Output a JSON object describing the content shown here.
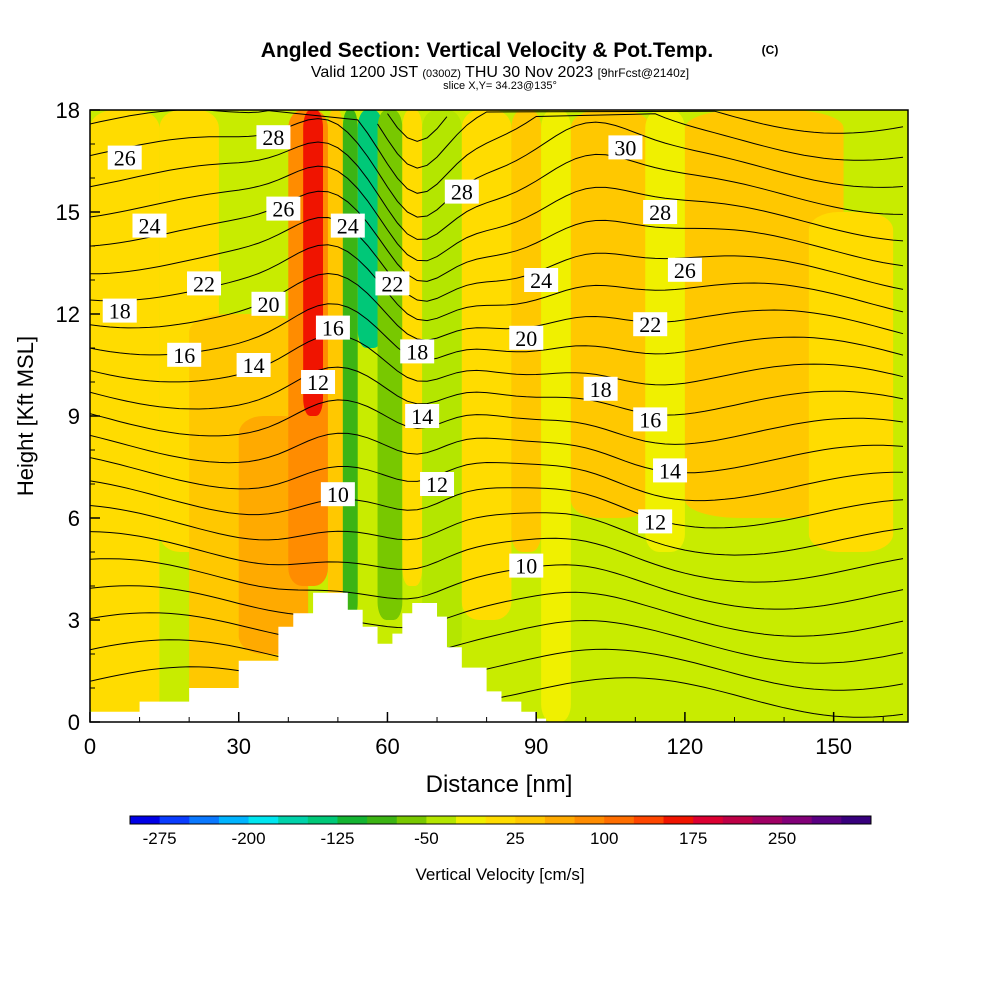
{
  "header": {
    "title": "Angled Section: Vertical Velocity & Pot.Temp.",
    "title_unit": "(C)",
    "valid_a": "Valid 1200 JST",
    "valid_z": "(0300Z)",
    "valid_b": "THU 30 Nov 2023",
    "fcst": "[9hrFcst@2140z]",
    "slice": "slice X,Y= 34.23@135°"
  },
  "chart_data": {
    "type": "contour",
    "xlabel": "Distance [nm]",
    "ylabel": "Height [Kft MSL]",
    "xlim": [
      0,
      165
    ],
    "ylim": [
      0,
      18
    ],
    "x_ticks": [
      0,
      30,
      60,
      90,
      120,
      150
    ],
    "y_ticks": [
      0,
      3,
      6,
      9,
      12,
      15,
      18
    ],
    "colorbar": {
      "label": "Vertical Velocity [cm/s]",
      "min": -300,
      "max": 325,
      "step": 25,
      "tick_labels": [
        "-275",
        "-200",
        "-125",
        "-50",
        "25",
        "100",
        "175",
        "250"
      ],
      "colors": [
        "#0000e6",
        "#0a3cff",
        "#0a78ff",
        "#00b4ff",
        "#00e6f0",
        "#00d2aa",
        "#00c878",
        "#14b432",
        "#3cb414",
        "#78c800",
        "#b4e600",
        "#f0f000",
        "#ffdc00",
        "#ffc800",
        "#ffaa00",
        "#ff8c00",
        "#ff6e00",
        "#ff4600",
        "#f01400",
        "#dc0032",
        "#be0046",
        "#a00064",
        "#820078",
        "#5a0082",
        "#37007d"
      ]
    },
    "velocity_bands": [
      {
        "x": 0,
        "w": 14,
        "ymin": 0,
        "ymax": 18,
        "value": 0
      },
      {
        "x": 14,
        "w": 12,
        "ymin": 5,
        "ymax": 18,
        "value": 10
      },
      {
        "x": 20,
        "w": 22,
        "ymin": 0,
        "ymax": 12,
        "value": 30
      },
      {
        "x": 30,
        "w": 14,
        "ymin": 2,
        "ymax": 9,
        "value": 60
      },
      {
        "x": 40,
        "w": 8,
        "ymin": 4,
        "ymax": 18,
        "value": 80
      },
      {
        "x": 43,
        "w": 4,
        "ymin": 9,
        "ymax": 18,
        "value": 150
      },
      {
        "x": 48,
        "w": 3,
        "ymin": 3,
        "ymax": 18,
        "value": 40
      },
      {
        "x": 51,
        "w": 3,
        "ymin": 3,
        "ymax": 18,
        "value": -80
      },
      {
        "x": 54,
        "w": 5,
        "ymin": 11,
        "ymax": 18,
        "value": -150
      },
      {
        "x": 58,
        "w": 5,
        "ymin": 3,
        "ymax": 18,
        "value": -60
      },
      {
        "x": 63,
        "w": 4,
        "ymin": 4,
        "ymax": 18,
        "value": 20
      },
      {
        "x": 67,
        "w": 8,
        "ymin": 2,
        "ymax": 18,
        "value": -45
      },
      {
        "x": 75,
        "w": 10,
        "ymin": 3,
        "ymax": 18,
        "value": 10
      },
      {
        "x": 85,
        "w": 6,
        "ymin": 5,
        "ymax": 18,
        "value": 40
      },
      {
        "x": 91,
        "w": 6,
        "ymin": 0,
        "ymax": 18,
        "value": -10
      },
      {
        "x": 97,
        "w": 16,
        "ymin": 6,
        "ymax": 18,
        "value": 40
      },
      {
        "x": 112,
        "w": 8,
        "ymin": 5,
        "ymax": 18,
        "value": -20
      },
      {
        "x": 120,
        "w": 32,
        "ymin": 6,
        "ymax": 18,
        "value": 25
      },
      {
        "x": 145,
        "w": 17,
        "ymin": 5,
        "ymax": 15,
        "value": 0
      }
    ],
    "terrain": {
      "x": [
        0,
        10,
        20,
        30,
        38,
        41,
        45,
        49,
        52,
        55,
        58,
        61,
        63,
        65,
        68,
        70,
        72,
        75,
        80,
        83,
        87,
        90,
        92,
        165
      ],
      "height": [
        0.3,
        0.6,
        1.0,
        1.8,
        2.8,
        3.2,
        3.8,
        3.8,
        3.3,
        2.8,
        2.3,
        2.6,
        3.2,
        3.5,
        3.5,
        3.1,
        2.2,
        1.6,
        0.9,
        0.6,
        0.3,
        0.1,
        0,
        0
      ]
    },
    "theta_labels": [
      {
        "text": "26",
        "x": 7,
        "y": 16.6
      },
      {
        "text": "28",
        "x": 37,
        "y": 17.2
      },
      {
        "text": "30",
        "x": 108,
        "y": 16.9
      },
      {
        "text": "24",
        "x": 12,
        "y": 14.6
      },
      {
        "text": "26",
        "x": 39,
        "y": 15.1
      },
      {
        "text": "28",
        "x": 75,
        "y": 15.6
      },
      {
        "text": "28",
        "x": 115,
        "y": 15.0
      },
      {
        "text": "24",
        "x": 52,
        "y": 14.6
      },
      {
        "text": "22",
        "x": 23,
        "y": 12.9
      },
      {
        "text": "22",
        "x": 61,
        "y": 12.9
      },
      {
        "text": "24",
        "x": 91,
        "y": 13.0
      },
      {
        "text": "26",
        "x": 120,
        "y": 13.3
      },
      {
        "text": "18",
        "x": 6,
        "y": 12.1
      },
      {
        "text": "20",
        "x": 36,
        "y": 12.3
      },
      {
        "text": "16",
        "x": 49,
        "y": 11.6
      },
      {
        "text": "22",
        "x": 113,
        "y": 11.7
      },
      {
        "text": "20",
        "x": 88,
        "y": 11.3
      },
      {
        "text": "16",
        "x": 19,
        "y": 10.8
      },
      {
        "text": "14",
        "x": 33,
        "y": 10.5
      },
      {
        "text": "18",
        "x": 66,
        "y": 10.9
      },
      {
        "text": "12",
        "x": 46,
        "y": 10.0
      },
      {
        "text": "18",
        "x": 103,
        "y": 9.8
      },
      {
        "text": "14",
        "x": 67,
        "y": 9.0
      },
      {
        "text": "16",
        "x": 113,
        "y": 8.9
      },
      {
        "text": "14",
        "x": 117,
        "y": 7.4
      },
      {
        "text": "12",
        "x": 70,
        "y": 7.0
      },
      {
        "text": "10",
        "x": 50,
        "y": 6.7
      },
      {
        "text": "12",
        "x": 114,
        "y": 5.9
      },
      {
        "text": "10",
        "x": 88,
        "y": 4.6
      }
    ]
  }
}
